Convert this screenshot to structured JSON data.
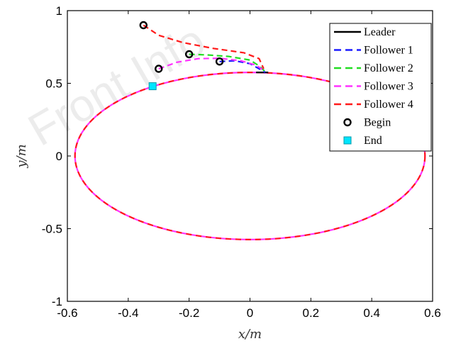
{
  "watermark": "Front Info",
  "chart_data": {
    "type": "line",
    "title": "",
    "xlabel": "x/m",
    "ylabel": "y/m",
    "xlim": [
      -0.6,
      0.6
    ],
    "ylim": [
      -1,
      1
    ],
    "xticks": [
      "-0.6",
      "-0.4",
      "-0.2",
      "0",
      "0.2",
      "0.4",
      "0.6"
    ],
    "yticks": [
      "1",
      "0.5",
      "0",
      "-0.5",
      "-1"
    ],
    "grid": false,
    "legend_position": "top-right",
    "orbit": {
      "center_x": 0.0,
      "center_y": 0.0,
      "radius_x": 0.575,
      "radius_y": 0.575
    },
    "series": [
      {
        "name": "Leader",
        "color": "#000000",
        "style": "solid",
        "path": [
          [
            0.02,
            0.575
          ],
          [
            0.06,
            0.575
          ]
        ]
      },
      {
        "name": "Follower 1",
        "color": "#1a1aff",
        "style": "dashed",
        "path": [
          [
            -0.1,
            0.65
          ],
          [
            -0.05,
            0.655
          ],
          [
            0.0,
            0.635
          ],
          [
            0.03,
            0.6
          ],
          [
            0.05,
            0.576
          ]
        ]
      },
      {
        "name": "Follower 2",
        "color": "#22dd22",
        "style": "dashed",
        "path": [
          [
            -0.2,
            0.7
          ],
          [
            -0.14,
            0.695
          ],
          [
            -0.07,
            0.685
          ],
          [
            0.0,
            0.66
          ],
          [
            0.03,
            0.62
          ],
          [
            0.05,
            0.58
          ]
        ]
      },
      {
        "name": "Follower 3",
        "color": "#ff33ff",
        "style": "dashed",
        "path": [
          [
            -0.3,
            0.6
          ],
          [
            -0.24,
            0.645
          ],
          [
            -0.17,
            0.67
          ],
          [
            -0.1,
            0.672
          ],
          [
            -0.03,
            0.655
          ],
          [
            0.02,
            0.625
          ],
          [
            0.05,
            0.582
          ]
        ]
      },
      {
        "name": "Follower 4",
        "color": "#ff1a1a",
        "style": "dashed",
        "path": [
          [
            -0.35,
            0.9
          ],
          [
            -0.3,
            0.83
          ],
          [
            -0.22,
            0.78
          ],
          [
            -0.12,
            0.74
          ],
          [
            -0.02,
            0.71
          ],
          [
            0.03,
            0.67
          ],
          [
            0.045,
            0.6
          ]
        ]
      }
    ],
    "begin_points": [
      [
        -0.35,
        0.9
      ],
      [
        -0.3,
        0.6
      ],
      [
        -0.2,
        0.7
      ],
      [
        -0.1,
        0.65
      ]
    ],
    "end_point": [
      -0.32,
      0.48
    ],
    "markers": [
      {
        "name": "Begin",
        "symbol": "circle",
        "color": "#000000"
      },
      {
        "name": "End",
        "symbol": "square",
        "color": "#00e5ff"
      }
    ]
  }
}
